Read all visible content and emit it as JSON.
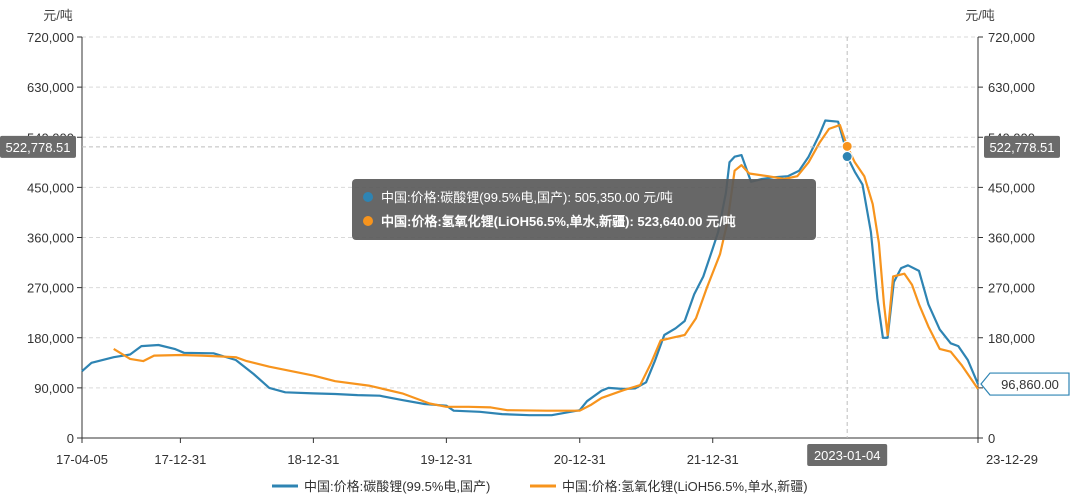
{
  "chart_data": {
    "type": "line",
    "y_unit": "元/吨",
    "ylim": [
      0,
      720000
    ],
    "y_ticks": [
      "0",
      "90,000",
      "180,000",
      "270,000",
      "360,000",
      "450,000",
      "540,000",
      "630,000",
      "720,000"
    ],
    "x_ticks": [
      "17-04-05",
      "17-12-31",
      "18-12-31",
      "19-12-31",
      "20-12-31",
      "21-12-31",
      "23-12-29"
    ],
    "crosshair_x_label": "2023-01-04",
    "crosshair_y_label": "522,778.51",
    "last_value_label": "96,860.00",
    "grid": true,
    "legend_position": "bottom",
    "series": [
      {
        "name": "中国:价格:碳酸锂(99.5%电,国产)",
        "color": "#2e84b3",
        "values": [
          [
            "2017-04-05",
            120000
          ],
          [
            "2017-05-01",
            135000
          ],
          [
            "2017-07-01",
            145000
          ],
          [
            "2017-08-15",
            150000
          ],
          [
            "2017-09-15",
            165000
          ],
          [
            "2017-11-01",
            167000
          ],
          [
            "2017-12-15",
            160000
          ],
          [
            "2018-01-10",
            153000
          ],
          [
            "2018-04-01",
            152000
          ],
          [
            "2018-06-01",
            140000
          ],
          [
            "2018-07-20",
            115000
          ],
          [
            "2018-09-01",
            90000
          ],
          [
            "2018-10-15",
            82000
          ],
          [
            "2018-12-31",
            80000
          ],
          [
            "2019-03-01",
            79000
          ],
          [
            "2019-05-01",
            77000
          ],
          [
            "2019-07-01",
            76000
          ],
          [
            "2019-09-01",
            68000
          ],
          [
            "2019-11-01",
            61000
          ],
          [
            "2019-12-31",
            58000
          ],
          [
            "2020-01-20",
            49000
          ],
          [
            "2020-04-01",
            47000
          ],
          [
            "2020-06-01",
            43000
          ],
          [
            "2020-08-15",
            41000
          ],
          [
            "2020-10-15",
            41000
          ],
          [
            "2020-12-31",
            50000
          ],
          [
            "2021-01-20",
            66000
          ],
          [
            "2021-03-01",
            85000
          ],
          [
            "2021-03-20",
            90000
          ],
          [
            "2021-05-01",
            88000
          ],
          [
            "2021-06-01",
            89000
          ],
          [
            "2021-07-01",
            100000
          ],
          [
            "2021-07-25",
            138000
          ],
          [
            "2021-08-20",
            185000
          ],
          [
            "2021-09-20",
            197000
          ],
          [
            "2021-10-15",
            210000
          ],
          [
            "2021-11-10",
            258000
          ],
          [
            "2021-12-05",
            290000
          ],
          [
            "2021-12-31",
            340000
          ],
          [
            "2022-01-15",
            370000
          ],
          [
            "2022-02-05",
            440000
          ],
          [
            "2022-02-15",
            495000
          ],
          [
            "2022-03-01",
            505000
          ],
          [
            "2022-03-20",
            508000
          ],
          [
            "2022-04-15",
            460000
          ],
          [
            "2022-05-15",
            465000
          ],
          [
            "2022-06-15",
            468000
          ],
          [
            "2022-07-25",
            470000
          ],
          [
            "2022-08-25",
            480000
          ],
          [
            "2022-09-20",
            505000
          ],
          [
            "2022-10-20",
            545000
          ],
          [
            "2022-11-05",
            570000
          ],
          [
            "2022-12-10",
            568000
          ],
          [
            "2022-12-31",
            520000
          ],
          [
            "2023-01-04",
            505350
          ],
          [
            "2023-01-25",
            478000
          ],
          [
            "2023-02-15",
            455000
          ],
          [
            "2023-03-10",
            370000
          ],
          [
            "2023-03-28",
            250000
          ],
          [
            "2023-04-12",
            180000
          ],
          [
            "2023-04-25",
            180000
          ],
          [
            "2023-05-12",
            280000
          ],
          [
            "2023-06-01",
            305000
          ],
          [
            "2023-06-20",
            310000
          ],
          [
            "2023-07-20",
            300000
          ],
          [
            "2023-08-15",
            240000
          ],
          [
            "2023-09-15",
            195000
          ],
          [
            "2023-10-15",
            170000
          ],
          [
            "2023-11-05",
            165000
          ],
          [
            "2023-12-01",
            140000
          ],
          [
            "2023-12-29",
            96860
          ]
        ]
      },
      {
        "name": "中国:价格:氢氧化锂(LiOH56.5%,单水,新疆)",
        "color": "#f7941d",
        "values": [
          [
            "2017-07-01",
            160000
          ],
          [
            "2017-08-15",
            142000
          ],
          [
            "2017-09-20",
            138000
          ],
          [
            "2017-10-20",
            148000
          ],
          [
            "2018-01-01",
            149000
          ],
          [
            "2018-03-01",
            148000
          ],
          [
            "2018-06-01",
            145000
          ],
          [
            "2018-07-01",
            138000
          ],
          [
            "2018-09-01",
            128000
          ],
          [
            "2018-12-31",
            112000
          ],
          [
            "2019-03-01",
            102000
          ],
          [
            "2019-06-01",
            94000
          ],
          [
            "2019-09-01",
            80000
          ],
          [
            "2019-11-15",
            62000
          ],
          [
            "2019-12-31",
            56000
          ],
          [
            "2020-03-01",
            56000
          ],
          [
            "2020-05-01",
            55000
          ],
          [
            "2020-06-15",
            50000
          ],
          [
            "2020-10-01",
            49000
          ],
          [
            "2020-12-31",
            49000
          ],
          [
            "2021-02-01",
            60000
          ],
          [
            "2021-03-01",
            72000
          ],
          [
            "2021-05-01",
            86000
          ],
          [
            "2021-06-15",
            95000
          ],
          [
            "2021-07-15",
            135000
          ],
          [
            "2021-08-10",
            175000
          ],
          [
            "2021-09-10",
            180000
          ],
          [
            "2021-10-15",
            185000
          ],
          [
            "2021-11-15",
            215000
          ],
          [
            "2021-12-15",
            270000
          ],
          [
            "2022-01-20",
            330000
          ],
          [
            "2022-02-10",
            390000
          ],
          [
            "2022-03-01",
            480000
          ],
          [
            "2022-03-20",
            490000
          ],
          [
            "2022-04-10",
            475000
          ],
          [
            "2022-06-01",
            470000
          ],
          [
            "2022-07-15",
            465000
          ],
          [
            "2022-08-20",
            470000
          ],
          [
            "2022-09-20",
            495000
          ],
          [
            "2022-10-20",
            530000
          ],
          [
            "2022-11-15",
            555000
          ],
          [
            "2022-12-15",
            562000
          ],
          [
            "2023-01-04",
            523640
          ],
          [
            "2023-01-25",
            495000
          ],
          [
            "2023-02-20",
            470000
          ],
          [
            "2023-03-15",
            420000
          ],
          [
            "2023-04-01",
            350000
          ],
          [
            "2023-04-15",
            240000
          ],
          [
            "2023-04-25",
            185000
          ],
          [
            "2023-05-10",
            290000
          ],
          [
            "2023-06-10",
            295000
          ],
          [
            "2023-07-01",
            275000
          ],
          [
            "2023-07-20",
            240000
          ],
          [
            "2023-08-15",
            200000
          ],
          [
            "2023-09-15",
            160000
          ],
          [
            "2023-10-15",
            155000
          ],
          [
            "2023-11-15",
            130000
          ],
          [
            "2023-12-29",
            88000
          ]
        ]
      }
    ],
    "tooltip": {
      "date": "2023-01-04",
      "rows": [
        {
          "label": "中国:价格:碳酸锂(99.5%电,国产): 505,350.00 元/吨",
          "value": 505350,
          "color": "#2e84b3",
          "bold": false
        },
        {
          "label": "中国:价格:氢氧化锂(LiOH56.5%,单水,新疆): 523,640.00 元/吨",
          "value": 523640,
          "color": "#f7941d",
          "bold": true
        }
      ]
    }
  }
}
